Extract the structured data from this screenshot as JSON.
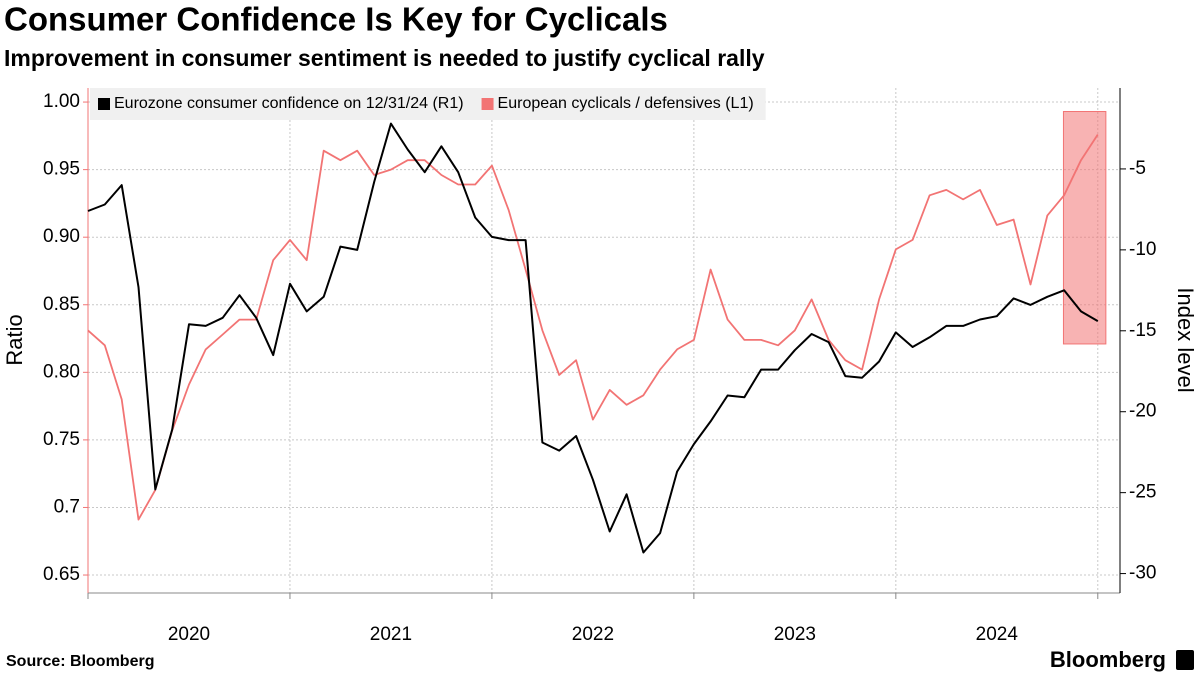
{
  "chart_data": {
    "type": "line",
    "title": "Consumer Confidence Is Key for Cyclicals",
    "subtitle": "Improvement in consumer sentiment is needed to justify cyclical rally",
    "ylabel": "Ratio",
    "y2label": "Index level",
    "source": "Source: Bloomberg",
    "brand": "Bloomberg",
    "x": [
      2020,
      2020.083,
      2020.167,
      2020.25,
      2020.333,
      2020.417,
      2020.5,
      2020.583,
      2020.667,
      2020.75,
      2020.833,
      2020.917,
      2021,
      2021.083,
      2021.167,
      2021.25,
      2021.333,
      2021.417,
      2021.5,
      2021.583,
      2021.667,
      2021.75,
      2021.833,
      2021.917,
      2022,
      2022.083,
      2022.167,
      2022.25,
      2022.333,
      2022.417,
      2022.5,
      2022.583,
      2022.667,
      2022.75,
      2022.833,
      2022.917,
      2023,
      2023.083,
      2023.167,
      2023.25,
      2023.333,
      2023.417,
      2023.5,
      2023.583,
      2023.667,
      2023.75,
      2023.833,
      2023.917,
      2024,
      2024.083,
      2024.167,
      2024.25,
      2024.333,
      2024.417,
      2024.5,
      2024.583,
      2024.667,
      2024.75,
      2024.833,
      2024.917,
      2025
    ],
    "series": [
      {
        "name": "Eurozone consumer confidence on 12/31/24 (R1)",
        "color": "#000000",
        "axis": "y2",
        "values": [
          -7.6,
          -7.2,
          -6.0,
          -12.3,
          -24.8,
          -21.1,
          -14.6,
          -14.7,
          -14.2,
          -12.8,
          -14.2,
          -16.5,
          -12.1,
          -13.8,
          -12.9,
          -9.8,
          -10.0,
          -5.8,
          -2.2,
          -3.8,
          -5.2,
          -3.6,
          -5.2,
          -8.0,
          -9.2,
          -9.4,
          -9.4,
          -21.9,
          -22.4,
          -21.5,
          -24.2,
          -27.4,
          -25.1,
          -28.7,
          -27.5,
          -23.7,
          -22.0,
          -20.6,
          -19.0,
          -19.1,
          -17.4,
          -17.4,
          -16.2,
          -15.2,
          -15.7,
          -17.8,
          -17.9,
          -16.9,
          -15.1,
          -16.0,
          -15.4,
          -14.7,
          -14.7,
          -14.3,
          -14.1,
          -13.0,
          -13.4,
          -12.9,
          -12.5,
          -13.8,
          -14.4
        ]
      },
      {
        "name": "European cyclicals / defensives (L1)",
        "color": "#f27474",
        "values": [
          0.831,
          0.82,
          0.78,
          0.691,
          0.713,
          0.757,
          0.791,
          0.817,
          0.828,
          0.839,
          0.839,
          0.883,
          0.898,
          0.883,
          0.964,
          0.957,
          0.964,
          0.946,
          0.95,
          0.957,
          0.957,
          0.946,
          0.939,
          0.939,
          0.953,
          0.92,
          0.876,
          0.831,
          0.798,
          0.809,
          0.765,
          0.787,
          0.776,
          0.783,
          0.802,
          0.817,
          0.824,
          0.876,
          0.839,
          0.824,
          0.824,
          0.82,
          0.831,
          0.854,
          0.824,
          0.809,
          0.802,
          0.854,
          0.891,
          0.898,
          0.931,
          0.935,
          0.928,
          0.935,
          0.909,
          0.913,
          0.865,
          0.916,
          0.931,
          0.957,
          0.976
        ]
      }
    ],
    "xlim": [
      2020,
      2025.11
    ],
    "xticks": [
      {
        "value": 2020.5,
        "label": "2020"
      },
      {
        "value": 2021.5,
        "label": "2021"
      },
      {
        "value": 2022.5,
        "label": "2022"
      },
      {
        "value": 2023.5,
        "label": "2023"
      },
      {
        "value": 2024.5,
        "label": "2024"
      }
    ],
    "xgrid": [
      2020,
      2021,
      2022,
      2023,
      2024,
      2025
    ],
    "ylim": [
      0.6367,
      1.0104
    ],
    "yticks": [
      {
        "value": 0.65,
        "label": "0.65"
      },
      0.7,
      0.75,
      {
        "value": 0.8,
        "label": "0.80"
      },
      0.85,
      {
        "value": 0.9,
        "label": "0.90"
      },
      0.95,
      {
        "value": 1,
        "label": "1.00"
      }
    ],
    "y2lim": [
      -31.2,
      0
    ],
    "y2ticks": [
      -30,
      -25,
      -20,
      -15,
      -10,
      -5
    ],
    "grid": true,
    "legend": "top-left",
    "highlight": {
      "x": [
        2024.83,
        2025.04
      ],
      "y": [
        0.821,
        0.993
      ],
      "color": "#f27474"
    }
  }
}
